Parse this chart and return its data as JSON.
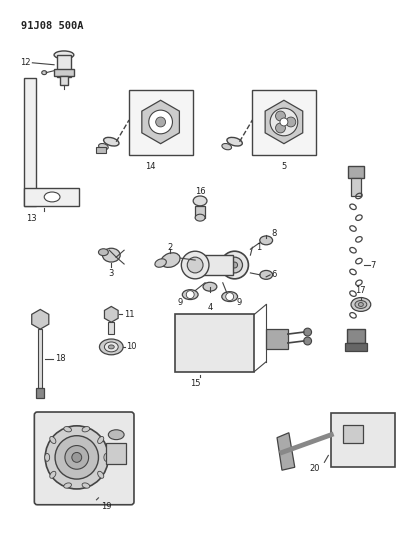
{
  "title": "91J08 500A",
  "bg_color": "#ffffff",
  "fig_width": 4.12,
  "fig_height": 5.33,
  "dpi": 100,
  "text_color": "#222222",
  "label_fontsize": 6.0,
  "title_fontsize": 7.5,
  "line_color": "#444444",
  "lw": 0.8
}
